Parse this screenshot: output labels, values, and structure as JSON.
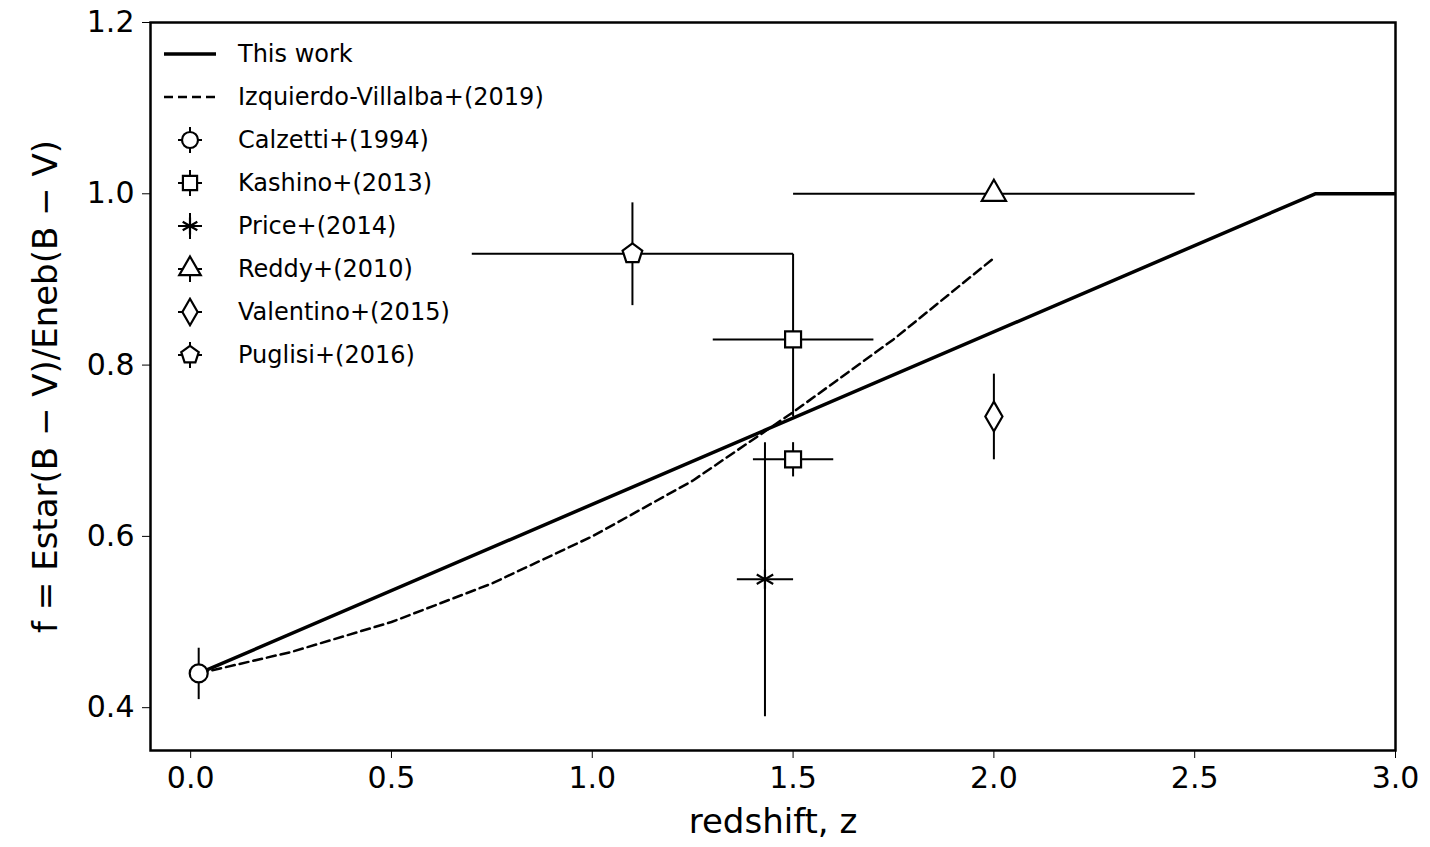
{
  "chart_data": {
    "type": "scatter",
    "x_label": "redshift, z",
    "y_label": "f = Estar(B − V)/Eneb(B − V)",
    "xlim": [
      -0.1,
      3.0
    ],
    "ylim": [
      0.35,
      1.2
    ],
    "xticks": [
      {
        "value": 0,
        "label": "0.0"
      },
      {
        "value": 0.5,
        "label": "0.5"
      },
      {
        "value": 1,
        "label": "1.0"
      },
      {
        "value": 1.5,
        "label": "1.5"
      },
      {
        "value": 2,
        "label": "2.0"
      },
      {
        "value": 2.5,
        "label": "2.5"
      },
      {
        "value": 3,
        "label": "3.0"
      }
    ],
    "yticks": [
      {
        "value": 0.4,
        "label": "0.4"
      },
      {
        "value": 0.6,
        "label": "0.6"
      },
      {
        "value": 0.8,
        "label": "0.8"
      },
      {
        "value": 1.0,
        "label": "1.0"
      },
      {
        "value": 1.2,
        "label": "1.2"
      }
    ],
    "grid": false,
    "legend": "upper left",
    "series": [
      {
        "name": "This work",
        "type": "line",
        "line_style": "solid",
        "color": "#000000",
        "x": [
          0.02,
          2.8,
          3.0
        ],
        "values": [
          0.44,
          1.0,
          1.0
        ]
      },
      {
        "name": "Izquierdo-Villalba+(2019)",
        "type": "line",
        "line_style": "dashed",
        "color": "#000000",
        "x": [
          0.02,
          0.25,
          0.5,
          0.75,
          1.0,
          1.25,
          1.5,
          1.75,
          2.0
        ],
        "values": [
          0.44,
          0.465,
          0.5,
          0.545,
          0.6,
          0.665,
          0.745,
          0.83,
          0.925
        ]
      },
      {
        "name": "Calzetti+(1994)",
        "type": "scatter",
        "marker": "circle",
        "color": "#000000",
        "x": [
          0.02
        ],
        "values": [
          0.44
        ],
        "x_lower": [
          null
        ],
        "x_upper": [
          null
        ],
        "y_lower": [
          0.41
        ],
        "y_upper": [
          0.47
        ]
      },
      {
        "name": "Kashino+(2013)",
        "type": "scatter",
        "marker": "square",
        "color": "#000000",
        "x": [
          1.5,
          1.5
        ],
        "values": [
          0.83,
          0.69
        ],
        "x_lower": [
          1.3,
          1.4
        ],
        "x_upper": [
          1.7,
          1.6
        ],
        "y_lower": [
          0.74,
          0.67
        ],
        "y_upper": [
          0.93,
          0.71
        ]
      },
      {
        "name": "Price+(2014)",
        "type": "scatter",
        "marker": "asterisk",
        "color": "#000000",
        "x": [
          1.43
        ],
        "values": [
          0.55
        ],
        "x_lower": [
          1.36
        ],
        "x_upper": [
          1.5
        ],
        "y_lower": [
          0.39
        ],
        "y_upper": [
          0.71
        ]
      },
      {
        "name": "Reddy+(2010)",
        "type": "scatter",
        "marker": "triangle",
        "color": "#000000",
        "x": [
          2.0
        ],
        "values": [
          1.0
        ],
        "x_lower": [
          1.5
        ],
        "x_upper": [
          2.5
        ],
        "y_lower": [
          null
        ],
        "y_upper": [
          null
        ]
      },
      {
        "name": "Valentino+(2015)",
        "type": "scatter",
        "marker": "diamond",
        "color": "#000000",
        "x": [
          2.0
        ],
        "values": [
          0.74
        ],
        "x_lower": [
          null
        ],
        "x_upper": [
          null
        ],
        "y_lower": [
          0.69
        ],
        "y_upper": [
          0.79
        ]
      },
      {
        "name": "Puglisi+(2016)",
        "type": "scatter",
        "marker": "pentagon",
        "color": "#000000",
        "x": [
          1.1
        ],
        "values": [
          0.93
        ],
        "x_lower": [
          0.7
        ],
        "x_upper": [
          1.5
        ],
        "y_lower": [
          0.87
        ],
        "y_upper": [
          0.99
        ]
      }
    ]
  }
}
